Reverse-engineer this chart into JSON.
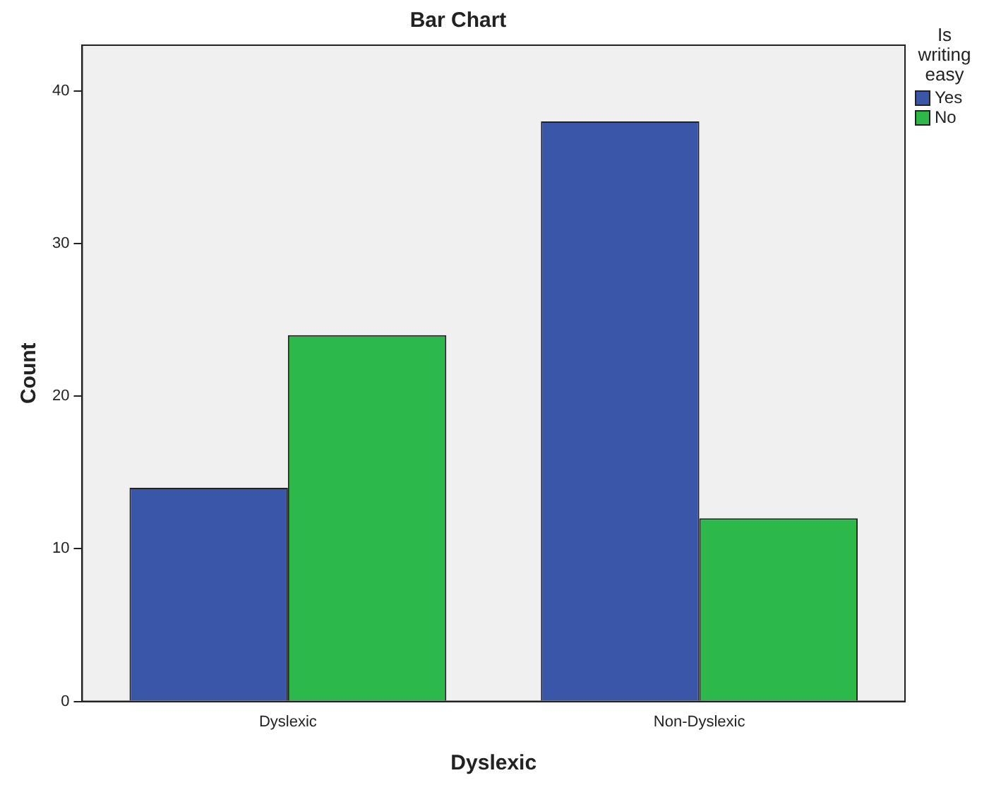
{
  "chart_data": {
    "type": "bar",
    "title": "Bar Chart",
    "xlabel": "Dyslexic",
    "ylabel": "Count",
    "legend_title": "Is writing easy",
    "categories": [
      "Dyslexic",
      "Non-Dyslexic"
    ],
    "series": [
      {
        "name": "Yes",
        "color": "#3a56a8",
        "values": [
          14,
          38
        ]
      },
      {
        "name": "No",
        "color": "#2db84a",
        "values": [
          24,
          12
        ]
      }
    ],
    "ylim": [
      0,
      43
    ],
    "yticks": [
      0,
      10,
      20,
      30,
      40
    ],
    "grid": false,
    "legend": "top right"
  }
}
